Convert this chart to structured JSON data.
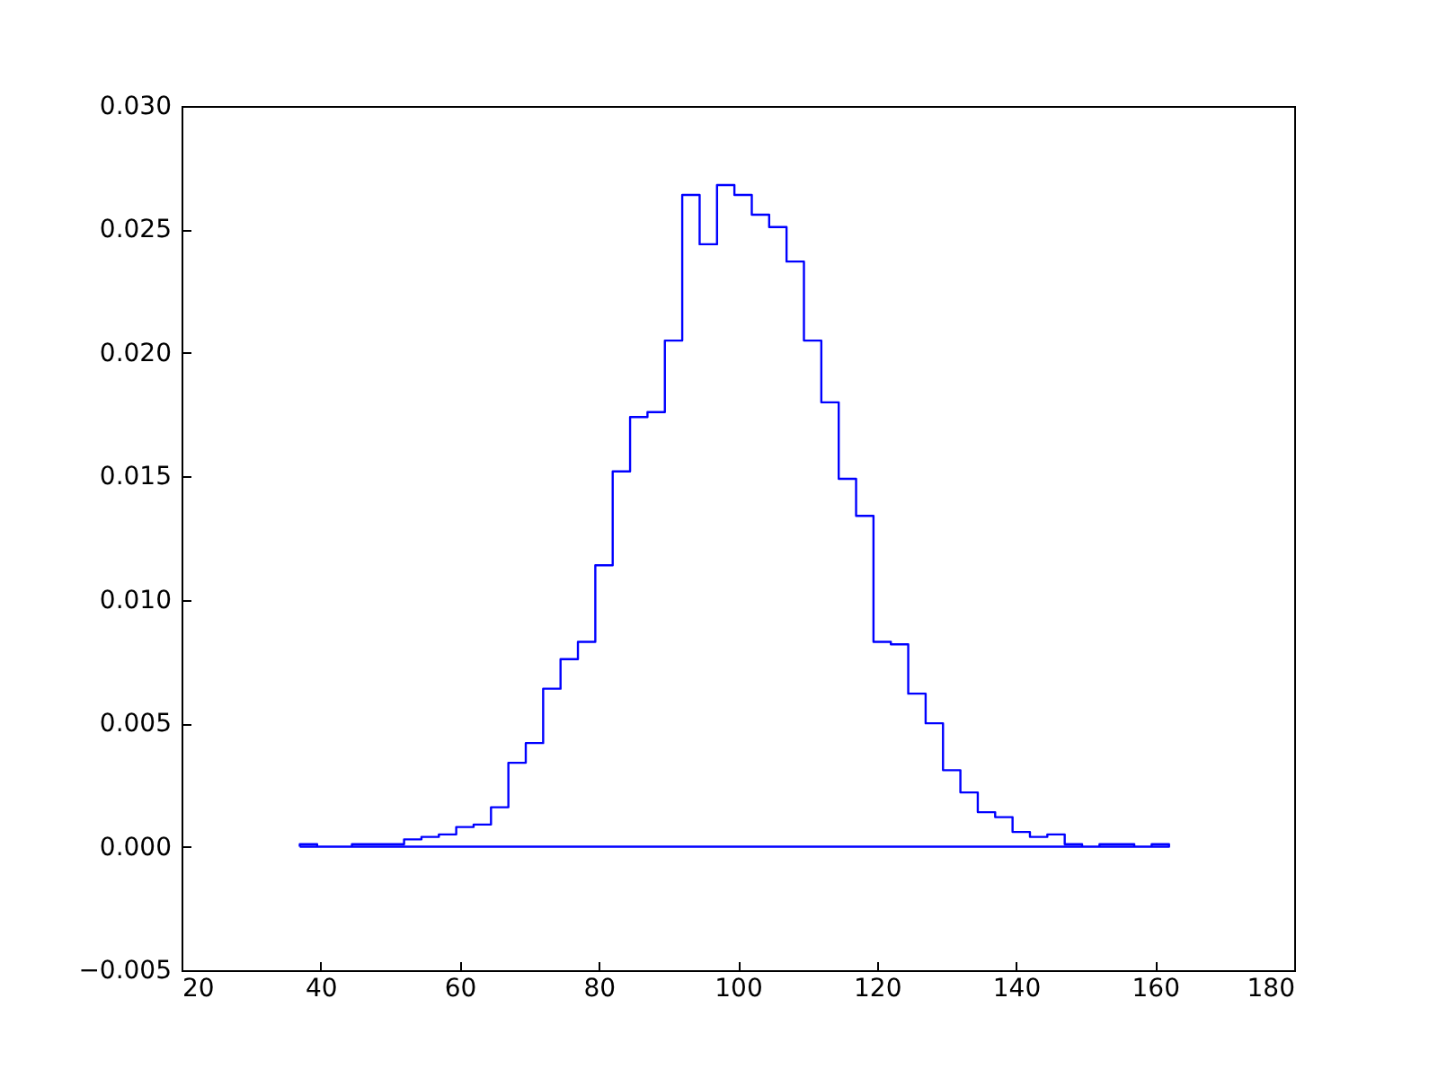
{
  "chart_data": {
    "type": "histogram",
    "color": "#0000ff",
    "bins": [
      37,
      39.5,
      42,
      44.5,
      47,
      49.5,
      52,
      54.5,
      57,
      59.5,
      62,
      64.5,
      67,
      69.5,
      72,
      74.5,
      77,
      79.5,
      82,
      84.5,
      87,
      89.5,
      92,
      94.5,
      97,
      99.5,
      102,
      104.5,
      107,
      109.5,
      112,
      114.5,
      117,
      119.5,
      122,
      124.5,
      127,
      129.5,
      132,
      134.5,
      137,
      139.5,
      142,
      144.5,
      147,
      149.5,
      152,
      154.5,
      157,
      159.5,
      162
    ],
    "values": [
      0.0001,
      0,
      0,
      0.0001,
      0.0001,
      0.0001,
      0.0003,
      0.0004,
      0.0005,
      0.0008,
      0.0009,
      0.0016,
      0.0034,
      0.0042,
      0.0064,
      0.0076,
      0.0083,
      0.0114,
      0.0152,
      0.0174,
      0.0176,
      0.0205,
      0.0264,
      0.0244,
      0.0268,
      0.0264,
      0.0256,
      0.0251,
      0.0237,
      0.0205,
      0.018,
      0.0149,
      0.0134,
      0.0083,
      0.0082,
      0.0062,
      0.005,
      0.0031,
      0.0022,
      0.0014,
      0.0012,
      0.0006,
      0.0004,
      0.0005,
      0.0001,
      0,
      0.0001,
      0.0001,
      0,
      0.0001
    ],
    "xlim": [
      20,
      180
    ],
    "xticks": [
      20,
      40,
      60,
      80,
      100,
      120,
      140,
      160,
      180
    ],
    "ylim": [
      -0.005,
      0.03
    ],
    "yticks": [
      {
        "value": -0.005,
        "label": "−0.005"
      },
      {
        "value": 0,
        "label": "0.000"
      },
      {
        "value": 0.005,
        "label": "0.005"
      },
      {
        "value": 0.01,
        "label": "0.010"
      },
      {
        "value": 0.015,
        "label": "0.015"
      },
      {
        "value": 0.02,
        "label": "0.020"
      },
      {
        "value": 0.025,
        "label": "0.025"
      },
      {
        "value": 0.03,
        "label": "0.030"
      }
    ]
  }
}
